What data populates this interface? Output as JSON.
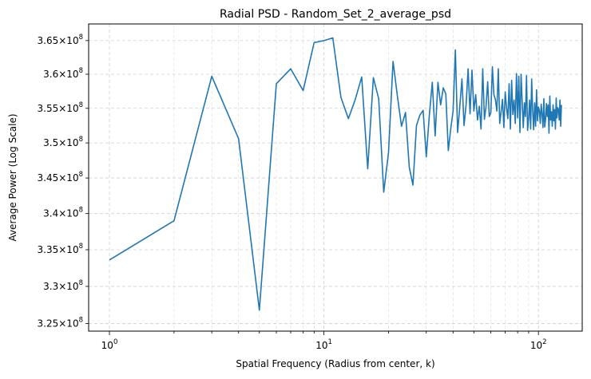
{
  "chart_data": {
    "type": "line",
    "title": "Radial PSD - Random_Set_2_average_psd",
    "xlabel": "Spatial Frequency (Radius from center, k)",
    "ylabel": "Average Power (Log Scale)",
    "xscale": "log",
    "yscale": "log",
    "xlim": [
      0.8,
      160
    ],
    "ylim": [
      324000000,
      367500000
    ],
    "grid": true,
    "grid_style": "dashed",
    "line_color": "#1f77b4",
    "x_major_ticks": [
      {
        "value": 1,
        "base": "10",
        "exp": "0"
      },
      {
        "value": 10,
        "base": "10",
        "exp": "1"
      },
      {
        "value": 100,
        "base": "10",
        "exp": "2"
      }
    ],
    "y_ticks": [
      {
        "value": 325000000,
        "mant": "3.25",
        "exp": "8"
      },
      {
        "value": 330000000,
        "mant": "3.3",
        "exp": "8"
      },
      {
        "value": 335000000,
        "mant": "3.35",
        "exp": "8"
      },
      {
        "value": 340000000,
        "mant": "3.4",
        "exp": "8"
      },
      {
        "value": 345000000,
        "mant": "3.45",
        "exp": "8"
      },
      {
        "value": 350000000,
        "mant": "3.5",
        "exp": "8"
      },
      {
        "value": 355000000,
        "mant": "3.55",
        "exp": "8"
      },
      {
        "value": 360000000,
        "mant": "3.6",
        "exp": "8"
      },
      {
        "value": 365000000,
        "mant": "3.65",
        "exp": "8"
      }
    ],
    "series": [
      {
        "x": [
          1,
          2,
          3,
          4,
          5,
          6,
          7,
          8,
          9,
          10,
          11,
          12,
          13,
          14,
          15,
          16,
          17,
          18,
          19,
          20,
          21,
          22,
          23,
          24,
          25,
          26,
          27,
          28,
          29,
          30,
          31,
          32,
          33,
          34,
          35,
          36,
          37,
          38,
          39,
          40,
          41,
          42,
          43,
          44,
          45,
          46,
          47,
          48,
          49,
          50,
          51,
          52,
          53,
          54,
          55,
          56,
          57,
          58,
          59,
          60,
          61,
          62,
          63,
          64,
          65,
          66,
          67,
          68,
          69,
          70,
          71,
          72,
          73,
          74,
          75,
          76,
          77,
          78,
          79,
          80,
          81,
          82,
          83,
          84,
          85,
          86,
          87,
          88,
          89,
          90,
          91,
          92,
          93,
          94,
          95,
          96,
          97,
          98,
          99,
          100,
          101,
          102,
          103,
          104,
          105,
          106,
          107,
          108,
          109,
          110,
          111,
          112,
          113,
          114,
          115,
          116,
          117,
          118,
          119,
          120,
          121,
          122,
          123,
          124,
          125,
          126,
          127,
          128
        ],
        "y": [
          333600000,
          339000000,
          359700000,
          350600000,
          326800000,
          358600000,
          360800000,
          357600000,
          364700000,
          365000000,
          365400000,
          356600000,
          353500000,
          356300000,
          359600000,
          346300000,
          359500000,
          356400000,
          343000000,
          348600000,
          361900000,
          356800000,
          352400000,
          354400000,
          346500000,
          344000000,
          352500000,
          354000000,
          354700000,
          348000000,
          354000000,
          358800000,
          351000000,
          358800000,
          355500000,
          358000000,
          357100000,
          348900000,
          352000000,
          354600000,
          363600000,
          351500000,
          355300000,
          359300000,
          352500000,
          355500000,
          360800000,
          354200000,
          360600000,
          354600000,
          357000000,
          353300000,
          355300000,
          352000000,
          360800000,
          353400000,
          355300000,
          358900000,
          353800000,
          354400000,
          361100000,
          357000000,
          356300000,
          354600000,
          360800000,
          352800000,
          354500000,
          356300000,
          352200000,
          357400000,
          355100000,
          353500000,
          358600000,
          352000000,
          359100000,
          354100000,
          356200000,
          352800000,
          360100000,
          353600000,
          359700000,
          351500000,
          360000000,
          356000000,
          352200000,
          355800000,
          353800000,
          359800000,
          351800000,
          353500000,
          356200000,
          352000000,
          359300000,
          354700000,
          351900000,
          355800000,
          352400000,
          357700000,
          353200000,
          355200000,
          354700000,
          352800000,
          355600000,
          354200000,
          352200000,
          356400000,
          352300000,
          353400000,
          355700000,
          353800000,
          355500000,
          351400000,
          356800000,
          353300000,
          354500000,
          352400000,
          355500000,
          353200000,
          354800000,
          352000000,
          356500000,
          353600000,
          355100000,
          354800000,
          353300000,
          356200000,
          352400000,
          355500000
        ]
      }
    ]
  }
}
